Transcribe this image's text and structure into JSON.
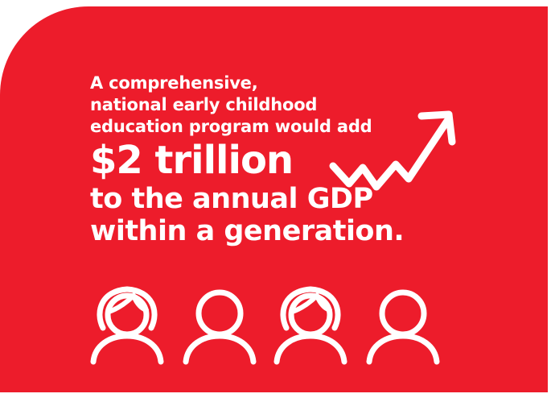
{
  "card": {
    "lines": [
      "A comprehensive,",
      "national early childhood",
      "education program would add"
    ],
    "amount": "$2 trillion",
    "rest": [
      "to the annual GDP",
      "within a generation."
    ]
  },
  "icons": {
    "arrow": "trend-up-arrow-icon",
    "people": [
      "woman-icon",
      "man-icon",
      "woman-icon",
      "man-icon"
    ]
  },
  "colors": {
    "background": "#ed1c2b",
    "text": "#ffffff"
  }
}
